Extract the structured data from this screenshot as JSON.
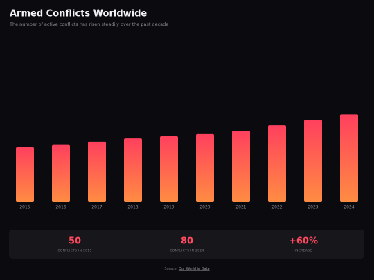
{
  "chart_data": {
    "type": "bar",
    "title": "Armed Conflicts Worldwide",
    "subtitle": "The number of active conflicts has risen steadily over the past decade",
    "categories": [
      "2015",
      "2016",
      "2017",
      "2018",
      "2019",
      "2020",
      "2021",
      "2022",
      "2023",
      "2024"
    ],
    "values": [
      50,
      52,
      55,
      58,
      60,
      62,
      65,
      70,
      75,
      80
    ],
    "color_top": "#ff405e",
    "color_bottom": "#ff8c42",
    "ylim": [
      0,
      120
    ],
    "grid": false
  },
  "stats": [
    {
      "value": "50",
      "label": "CONFLICTS IN 2015"
    },
    {
      "value": "80",
      "label": "CONFLICTS IN 2024"
    },
    {
      "value": "+60%",
      "label": "INCREASE"
    }
  ],
  "source": {
    "prefix": "Source:",
    "link": "Our World in Data"
  }
}
